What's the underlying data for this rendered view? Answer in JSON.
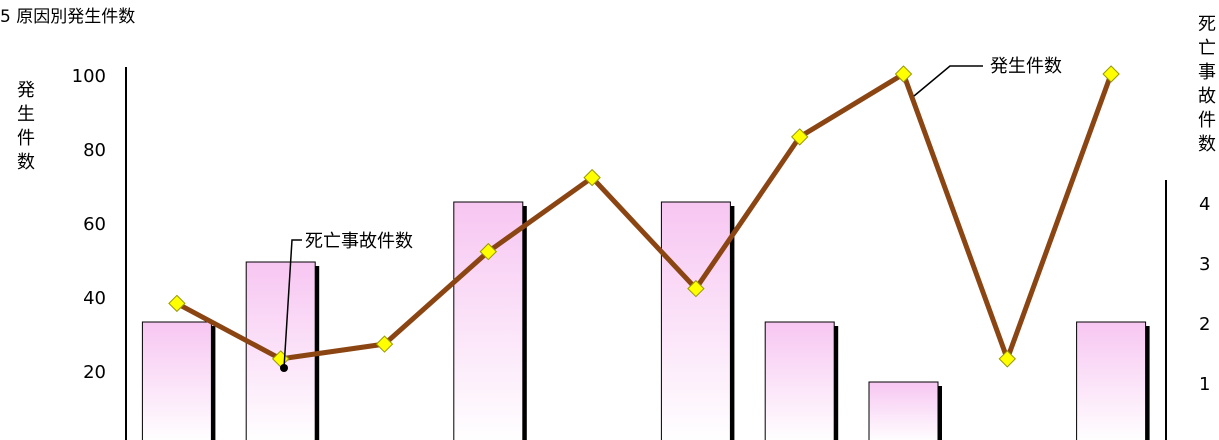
{
  "chart_data": {
    "type": "bar",
    "title": "5  原因別発生件数",
    "ylabel_left": "発生件数",
    "ylabel_right": "死亡事故件数",
    "categories": [
      "",
      "",
      "",
      "",
      "",
      "",
      "",
      "",
      "",
      ""
    ],
    "yticks_left": [
      "20",
      "40",
      "60",
      "80",
      "100"
    ],
    "yticks_right": [
      "1",
      "2",
      "3",
      "4"
    ],
    "ylim_left": [
      0,
      100
    ],
    "ylim_right": [
      0,
      4
    ],
    "series": [
      {
        "name": "死亡事故件数",
        "type": "bar",
        "axis": "right",
        "values": [
          2,
          3,
          null,
          4,
          null,
          4,
          2,
          1,
          null,
          2
        ]
      },
      {
        "name": "発生件数",
        "type": "line",
        "axis": "left",
        "values": [
          38,
          23,
          27,
          52,
          72,
          42,
          83,
          100,
          23,
          100
        ]
      }
    ],
    "annotations": {
      "bar_label": "死亡事故件数",
      "line_label": "発生件数"
    },
    "colors": {
      "line": "#8b4513",
      "marker_fill": "#ffff00",
      "marker_stroke": "#999900",
      "bar_top": "#f7c6f2",
      "bar_bottom": "#ffffff",
      "bar_stroke": "#000000",
      "bar_shadow": "#000000"
    }
  }
}
